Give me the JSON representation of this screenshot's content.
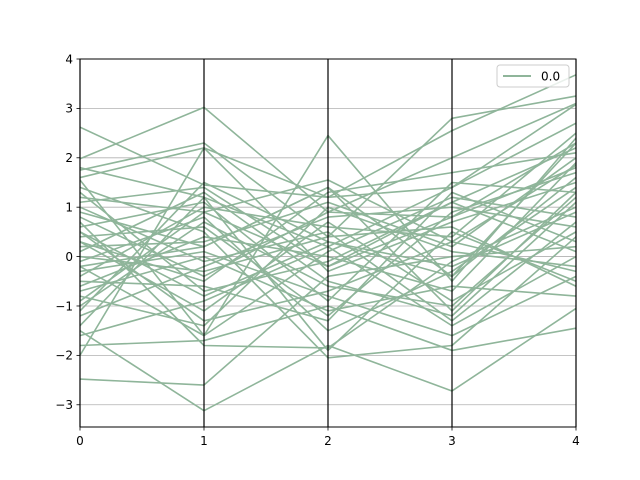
{
  "chart_data": {
    "type": "line",
    "subtype": "parallel-coordinates",
    "title": "",
    "xlabel": "",
    "ylabel": "",
    "categories": [
      0,
      1,
      2,
      3,
      4
    ],
    "x_tick_labels": [
      "0",
      "1",
      "2",
      "3",
      "4"
    ],
    "y_tick_labels": [
      "−3",
      "−2",
      "−1",
      "0",
      "1",
      "2",
      "3",
      "4"
    ],
    "y_ticks": [
      -3,
      -2,
      -1,
      0,
      1,
      2,
      3,
      4
    ],
    "xlim": [
      0,
      4
    ],
    "ylim": [
      -3.45,
      4.0
    ],
    "grid": "horizontal",
    "vertical_axis_lines": true,
    "legend": {
      "placement": "top-right",
      "entries": [
        "0.0"
      ]
    },
    "line_color": "#8fb59a",
    "series": [
      {
        "name": "0.0",
        "values": [
          2.62,
          1.45,
          1.2,
          1.4,
          3.08
        ]
      },
      {
        "name": "0.0",
        "values": [
          1.98,
          3.02,
          0.9,
          2.0,
          3.1
        ]
      },
      {
        "name": "0.0",
        "values": [
          1.75,
          2.3,
          0.4,
          2.8,
          3.25
        ]
      },
      {
        "name": "0.0",
        "values": [
          1.6,
          2.2,
          1.2,
          2.55,
          3.68
        ]
      },
      {
        "name": "0.0",
        "values": [
          1.55,
          -1.6,
          2.45,
          -0.5,
          2.4
        ]
      },
      {
        "name": "0.0",
        "values": [
          1.8,
          1.2,
          0.2,
          1.4,
          2.7
        ]
      },
      {
        "name": "0.0",
        "values": [
          1.2,
          0.9,
          1.55,
          0.3,
          1.85
        ]
      },
      {
        "name": "0.0",
        "values": [
          1.1,
          1.4,
          -0.2,
          1.1,
          2.2
        ]
      },
      {
        "name": "0.0",
        "values": [
          0.9,
          0.2,
          1.4,
          -0.4,
          1.6
        ]
      },
      {
        "name": "0.0",
        "values": [
          0.8,
          -0.4,
          0.9,
          0.8,
          2.3
        ]
      },
      {
        "name": "0.0",
        "values": [
          0.6,
          1.1,
          -0.9,
          1.5,
          1.3
        ]
      },
      {
        "name": "0.0",
        "values": [
          0.5,
          -0.8,
          0.3,
          -0.2,
          0.9
        ]
      },
      {
        "name": "0.0",
        "values": [
          0.4,
          0.6,
          -1.2,
          0.9,
          1.7
        ]
      },
      {
        "name": "0.0",
        "values": [
          0.3,
          -1.1,
          0.7,
          -0.9,
          0.5
        ]
      },
      {
        "name": "0.0",
        "values": [
          0.2,
          0.3,
          1.1,
          0.2,
          2.0
        ]
      },
      {
        "name": "0.0",
        "values": [
          0.1,
          1.3,
          -0.5,
          -1.2,
          1.1
        ]
      },
      {
        "name": "0.0",
        "values": [
          0.0,
          -0.3,
          0.4,
          0.6,
          -0.6
        ]
      },
      {
        "name": "0.0",
        "values": [
          -0.1,
          0.8,
          -1.5,
          -0.3,
          1.4
        ]
      },
      {
        "name": "0.0",
        "values": [
          -0.2,
          -1.6,
          0.1,
          1.2,
          0.8
        ]
      },
      {
        "name": "0.0",
        "values": [
          -0.3,
          0.1,
          -0.8,
          -1.6,
          -0.4
        ]
      },
      {
        "name": "0.0",
        "values": [
          -0.4,
          1.0,
          0.6,
          0.4,
          2.5
        ]
      },
      {
        "name": "0.0",
        "values": [
          -0.5,
          -0.6,
          -1.3,
          1.3,
          0.3
        ]
      },
      {
        "name": "0.0",
        "values": [
          -0.6,
          0.4,
          0.0,
          -0.7,
          1.9
        ]
      },
      {
        "name": "0.0",
        "values": [
          -0.8,
          -1.4,
          1.0,
          0.1,
          -0.2
        ]
      },
      {
        "name": "0.0",
        "values": [
          -1.0,
          0.7,
          -0.6,
          -1.0,
          1.2
        ]
      },
      {
        "name": "0.0",
        "values": [
          -1.2,
          -0.2,
          0.8,
          1.0,
          0.6
        ]
      },
      {
        "name": "0.0",
        "values": [
          -1.4,
          1.2,
          -1.9,
          0.5,
          -0.5
        ]
      },
      {
        "name": "0.0",
        "values": [
          -1.6,
          -0.9,
          0.2,
          -1.4,
          0.0
        ]
      },
      {
        "name": "0.0",
        "values": [
          -1.8,
          -1.7,
          -1.0,
          -1.9,
          -1.45
        ]
      },
      {
        "name": "0.0",
        "values": [
          -2.0,
          2.2,
          -0.3,
          0.7,
          1.5
        ]
      },
      {
        "name": "0.0",
        "values": [
          -2.48,
          -2.6,
          -0.4,
          0.0,
          0.2
        ]
      },
      {
        "name": "0.0",
        "values": [
          -1.5,
          -3.12,
          -1.8,
          -2.72,
          -1.05
        ]
      },
      {
        "name": "0.0",
        "values": [
          0.7,
          -1.8,
          -1.85,
          -0.1,
          1.0
        ]
      },
      {
        "name": "0.0",
        "values": [
          1.4,
          0.5,
          -2.05,
          -1.8,
          0.4
        ]
      },
      {
        "name": "0.0",
        "values": [
          0.3,
          -0.5,
          1.3,
          1.7,
          2.1
        ]
      },
      {
        "name": "0.0",
        "values": [
          -0.7,
          0.0,
          -1.1,
          -0.6,
          -0.8
        ]
      },
      {
        "name": "0.0",
        "values": [
          1.0,
          -0.1,
          0.5,
          -1.3,
          0.7
        ]
      },
      {
        "name": "0.0",
        "values": [
          -0.9,
          0.9,
          -0.2,
          0.8,
          1.8
        ]
      },
      {
        "name": "0.0",
        "values": [
          0.5,
          -1.3,
          -0.7,
          0.3,
          -0.3
        ]
      },
      {
        "name": "0.0",
        "values": [
          -0.2,
          0.2,
          1.4,
          -1.1,
          1.3
        ]
      },
      {
        "name": "0.0",
        "values": [
          1.3,
          -0.7,
          -0.1,
          1.1,
          0.1
        ]
      },
      {
        "name": "0.0",
        "values": [
          -1.1,
          1.5,
          0.3,
          -0.4,
          2.3
        ]
      }
    ]
  }
}
